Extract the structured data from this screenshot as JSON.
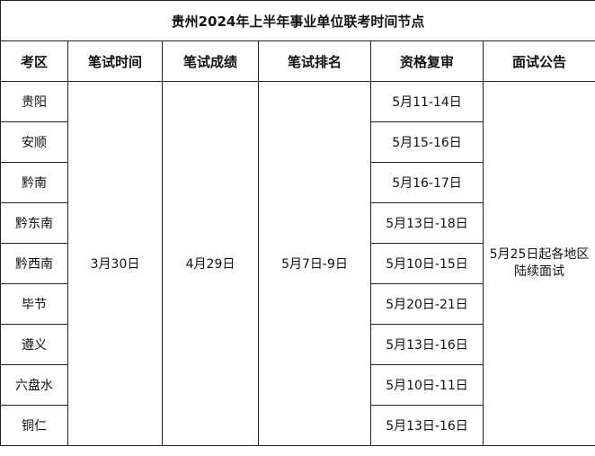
{
  "title": "贵州2024年上半年事业单位联考时间节点",
  "headers": [
    "考区",
    "笔试时间",
    "笔试成绩",
    "笔试排名",
    "资格复审",
    "面试公告"
  ],
  "written_exam_date": "3月30日",
  "score_date": "4月29日",
  "ranking_date": "5月7日-9日",
  "interview_notice": "5月25日起各地区陆续面试",
  "rows": [
    {
      "region": "贵阳",
      "review": "5月11-14日"
    },
    {
      "region": "安顺",
      "review": "5月15-16日"
    },
    {
      "region": "黔南",
      "review": "5月16-17日"
    },
    {
      "region": "黔东南",
      "review": "5月13日-18日"
    },
    {
      "region": "黔西南",
      "review": "5月10日-15日"
    },
    {
      "region": "毕节",
      "review": "5月20日-21日"
    },
    {
      "region": "遵义",
      "review": "5月13日-16日"
    },
    {
      "region": "六盘水",
      "review": "5月10日-11日"
    },
    {
      "region": "铜仁",
      "review": "5月13日-16日"
    }
  ]
}
